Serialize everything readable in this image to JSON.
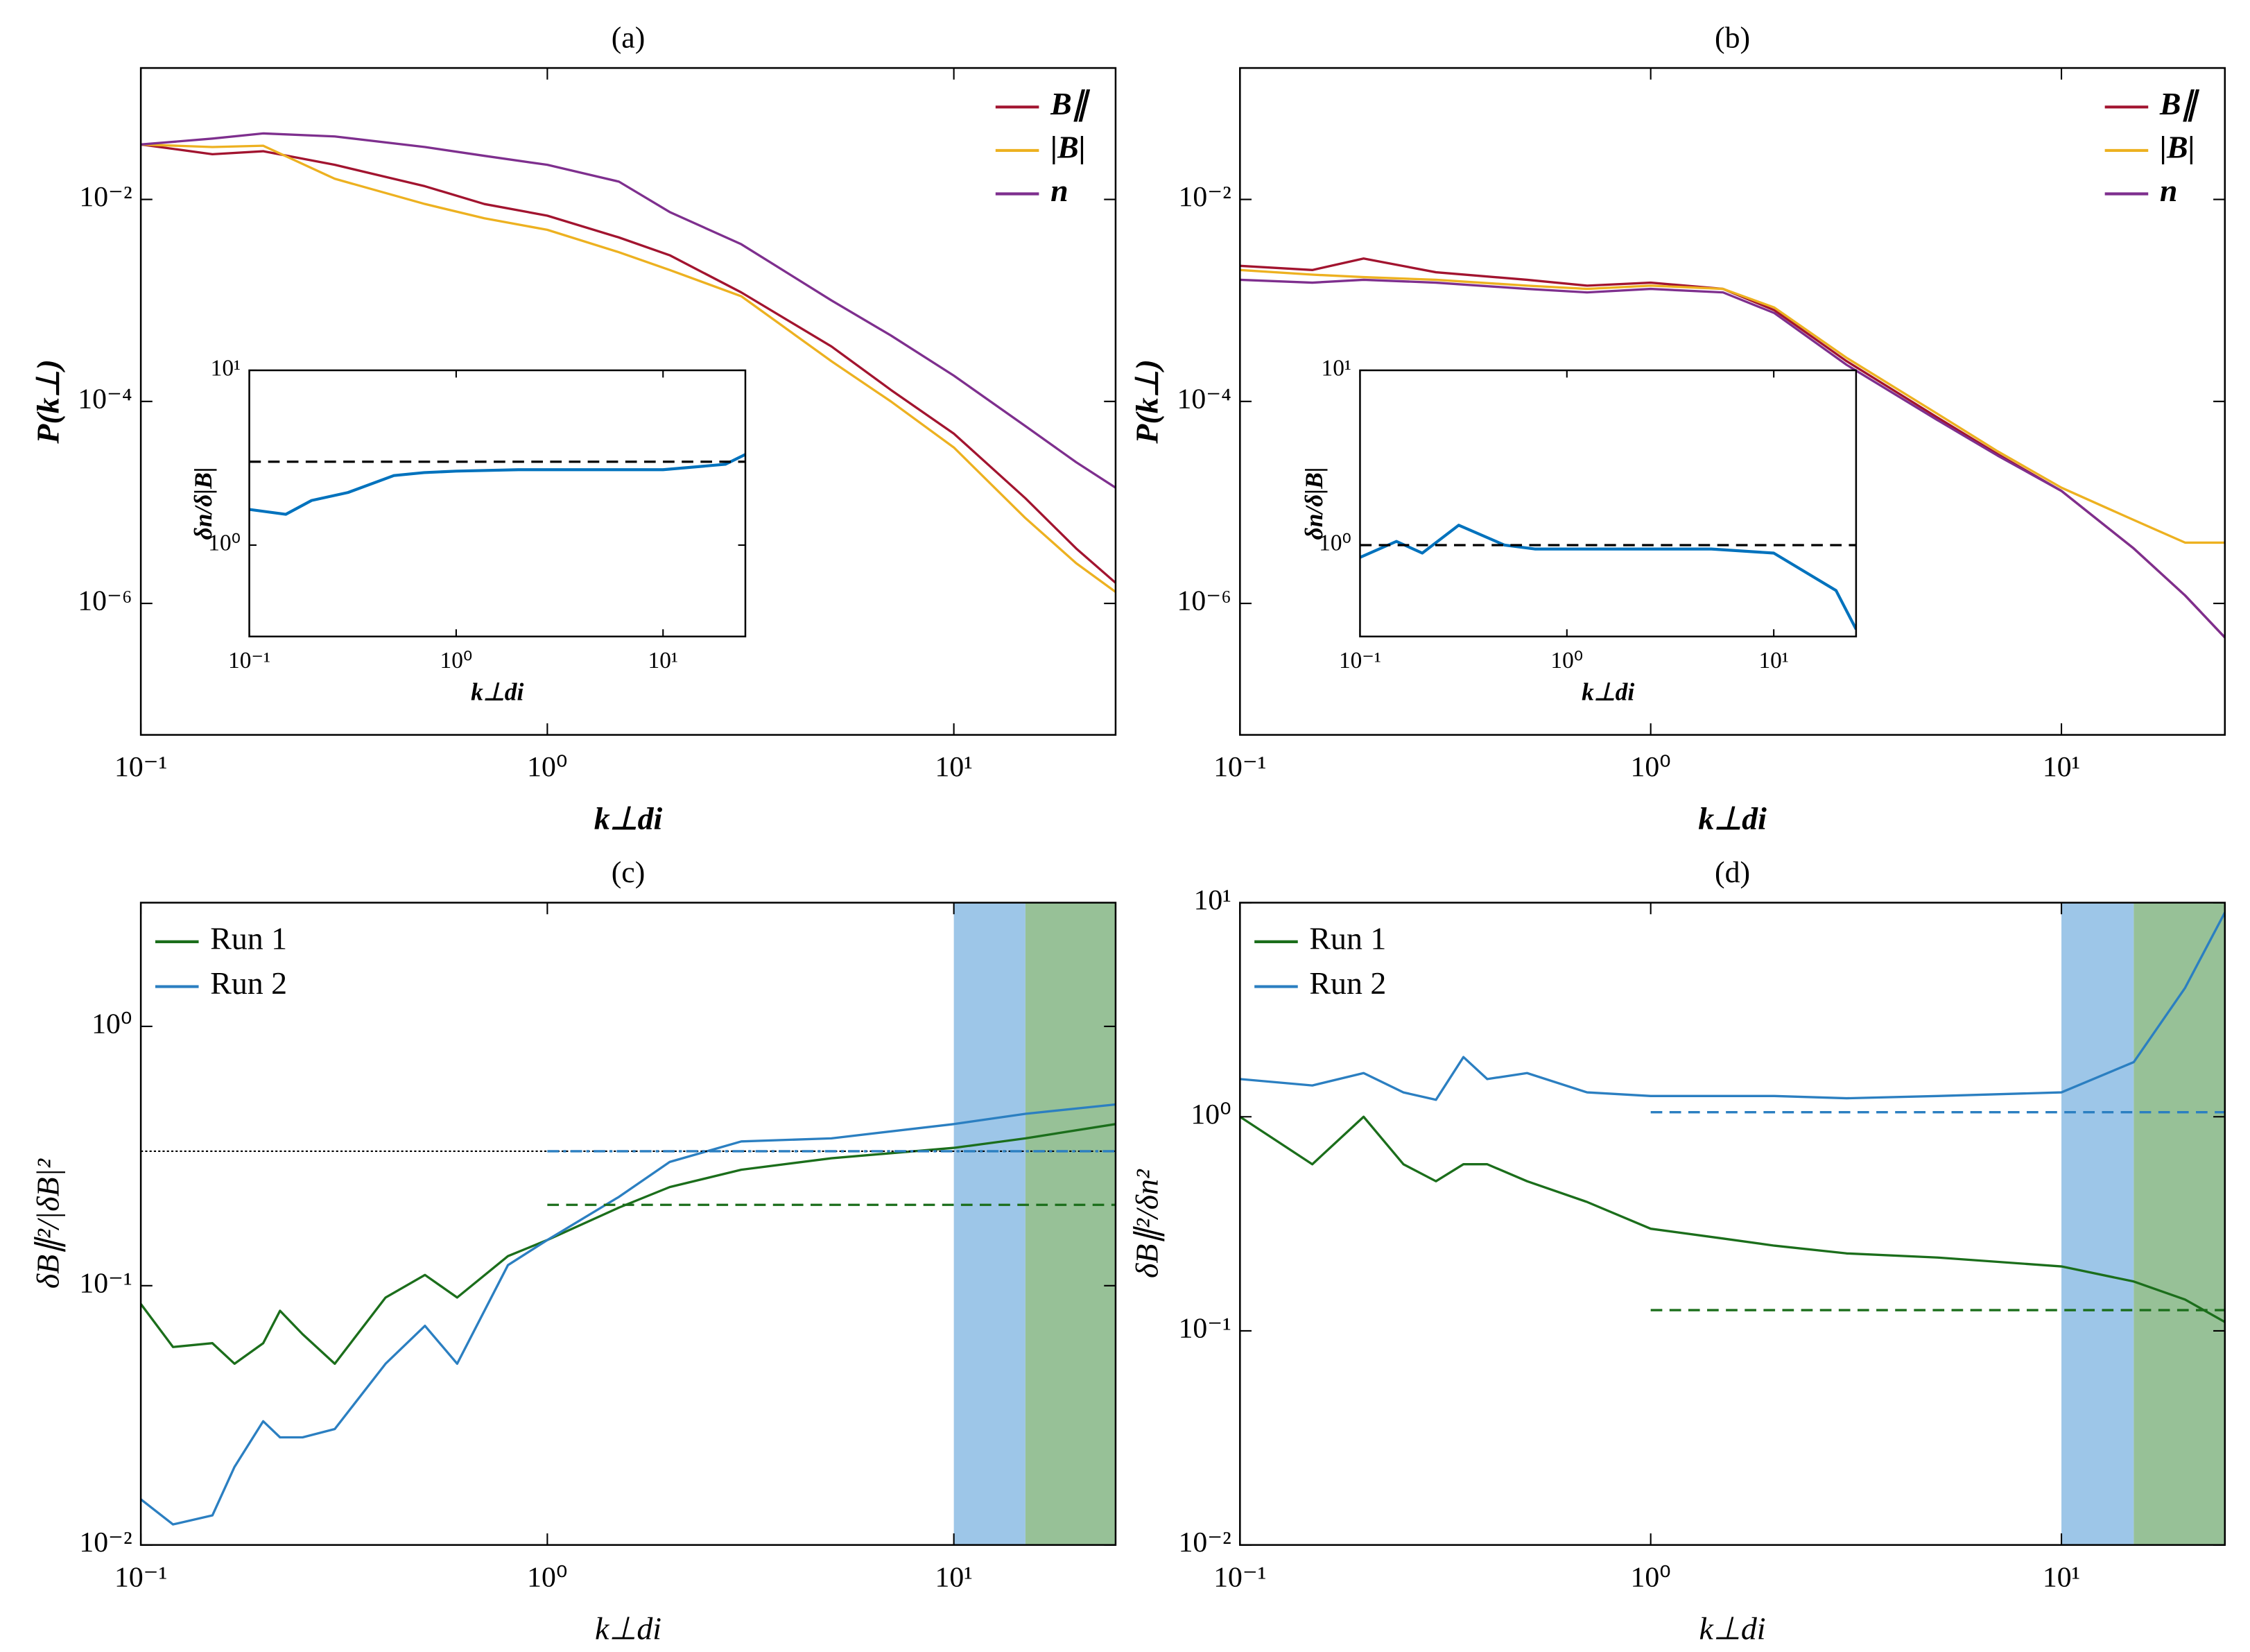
{
  "chart_data": [
    {
      "type": "line",
      "title": "(a)",
      "xlabel": "k⊥di",
      "ylabel": "P(k⊥)",
      "xscale": "log",
      "yscale": "log",
      "xlim": [
        0.1,
        25
      ],
      "ylim": [
        5e-08,
        0.2
      ],
      "xticks": [
        {
          "value": 0.1,
          "label": "10⁻¹"
        },
        {
          "value": 1,
          "label": "10⁰"
        },
        {
          "value": 10,
          "label": "10¹"
        }
      ],
      "yticks": [
        {
          "value": 0.01,
          "label": "10⁻²"
        },
        {
          "value": 0.0001,
          "label": "10⁻⁴"
        },
        {
          "value": 1e-06,
          "label": "10⁻⁶"
        }
      ],
      "legend": "upper right",
      "x": [
        0.1,
        0.15,
        0.2,
        0.3,
        0.5,
        0.7,
        1,
        1.5,
        2,
        3,
        5,
        7,
        10,
        15,
        20,
        25
      ],
      "series": [
        {
          "name": "B∥",
          "color": "#a2142f",
          "values": [
            0.035,
            0.028,
            0.03,
            0.022,
            0.0135,
            0.009,
            0.0069,
            0.0042,
            0.0028,
            0.0012,
            0.00035,
            0.00013,
            4.8e-05,
            1.1e-05,
            3.5e-06,
            1.6e-06
          ]
        },
        {
          "name": "|B|",
          "color": "#edb120",
          "values": [
            0.035,
            0.033,
            0.034,
            0.016,
            0.009,
            0.0065,
            0.005,
            0.003,
            0.002,
            0.0011,
            0.00025,
            0.0001,
            3.5e-05,
            7e-06,
            2.5e-06,
            1.3e-06
          ]
        },
        {
          "name": "n",
          "color": "#7e2f8e",
          "values": [
            0.035,
            0.04,
            0.045,
            0.042,
            0.033,
            0.027,
            0.022,
            0.015,
            0.0075,
            0.0036,
            0.001,
            0.00045,
            0.00018,
            5.7e-05,
            2.5e-05,
            1.4e-05
          ]
        }
      ],
      "inset": {
        "type": "line",
        "xlabel": "k⊥di",
        "ylabel": "δn/δ|B|",
        "xscale": "log",
        "yscale": "log",
        "xlim": [
          0.1,
          25
        ],
        "ylim": [
          0.3,
          10
        ],
        "xticks": [
          {
            "value": 0.1,
            "label": "10⁻¹"
          },
          {
            "value": 1,
            "label": "10⁰"
          },
          {
            "value": 10,
            "label": "10¹"
          }
        ],
        "yticks": [
          {
            "value": 1,
            "label": "10⁰"
          },
          {
            "value": 10,
            "label": "10¹"
          }
        ],
        "x": [
          0.1,
          0.15,
          0.2,
          0.3,
          0.5,
          0.7,
          1,
          2,
          5,
          10,
          20,
          25
        ],
        "series": [
          {
            "color": "#0072bd",
            "values": [
              1.6,
              1.5,
              1.8,
              2.0,
              2.5,
              2.6,
              2.65,
              2.7,
              2.7,
              2.7,
              2.9,
              3.3
            ]
          }
        ],
        "reference_lines": [
          {
            "x": [
              0.1,
              25
            ],
            "y": 3,
            "color": "#000000",
            "style": "dashed"
          }
        ]
      }
    },
    {
      "type": "line",
      "title": "(b)",
      "xlabel": "k⊥di",
      "ylabel": "P(k⊥)",
      "xscale": "log",
      "yscale": "log",
      "xlim": [
        0.1,
        25
      ],
      "ylim": [
        5e-08,
        0.2
      ],
      "xticks": [
        {
          "value": 0.1,
          "label": "10⁻¹"
        },
        {
          "value": 1,
          "label": "10⁰"
        },
        {
          "value": 10,
          "label": "10¹"
        }
      ],
      "yticks": [
        {
          "value": 0.01,
          "label": "10⁻²"
        },
        {
          "value": 0.0001,
          "label": "10⁻⁴"
        },
        {
          "value": 1e-06,
          "label": "10⁻⁶"
        }
      ],
      "legend": "upper right",
      "x": [
        0.1,
        0.15,
        0.2,
        0.3,
        0.5,
        0.7,
        1,
        1.5,
        2,
        3,
        5,
        7,
        10,
        15,
        20,
        25
      ],
      "series": [
        {
          "name": "B∥",
          "color": "#a2142f",
          "values": [
            0.0022,
            0.002,
            0.0026,
            0.0019,
            0.0016,
            0.0014,
            0.0015,
            0.0013,
            0.0008,
            0.00025,
            6.9e-05,
            3e-05,
            1.3e-05,
            3.5e-06,
            1.2e-06,
            4.6e-07
          ]
        },
        {
          "name": "|B|",
          "color": "#edb120",
          "values": [
            0.002,
            0.0018,
            0.0017,
            0.0016,
            0.0014,
            0.0013,
            0.0014,
            0.0013,
            0.00085,
            0.00027,
            7.5e-05,
            3.2e-05,
            1.4e-05,
            6.7e-06,
            4e-06,
            4e-06
          ]
        },
        {
          "name": "n",
          "color": "#7e2f8e",
          "values": [
            0.0016,
            0.0015,
            0.0016,
            0.0015,
            0.0013,
            0.0012,
            0.0013,
            0.0012,
            0.00075,
            0.00023,
            6.5e-05,
            2.9e-05,
            1.3e-05,
            3.5e-06,
            1.2e-06,
            4.6e-07
          ]
        }
      ],
      "inset": {
        "type": "line",
        "xlabel": "k⊥di",
        "ylabel": "δn/δ|B|",
        "xscale": "log",
        "yscale": "log",
        "xlim": [
          0.1,
          25
        ],
        "ylim": [
          0.3,
          10
        ],
        "xticks": [
          {
            "value": 0.1,
            "label": "10⁻¹"
          },
          {
            "value": 1,
            "label": "10⁰"
          },
          {
            "value": 10,
            "label": "10¹"
          }
        ],
        "yticks": [
          {
            "value": 1,
            "label": "10⁰"
          },
          {
            "value": 10,
            "label": "10¹"
          }
        ],
        "x": [
          0.1,
          0.15,
          0.2,
          0.3,
          0.5,
          0.7,
          1,
          2,
          5,
          10,
          20,
          25
        ],
        "series": [
          {
            "color": "#0072bd",
            "values": [
              0.85,
              1.05,
              0.9,
              1.3,
              1.0,
              0.95,
              0.95,
              0.95,
              0.95,
              0.9,
              0.55,
              0.33
            ]
          }
        ],
        "reference_lines": [
          {
            "x": [
              0.1,
              25
            ],
            "y": 1,
            "color": "#000000",
            "style": "dashed"
          }
        ]
      }
    },
    {
      "type": "line",
      "title": "(c)",
      "xlabel": "k⊥di",
      "ylabel": "δB∥²/|δB|²",
      "xscale": "log",
      "yscale": "log",
      "xlim": [
        0.1,
        25
      ],
      "ylim": [
        0.01,
        3
      ],
      "xticks": [
        {
          "value": 0.1,
          "label": "10⁻¹"
        },
        {
          "value": 1,
          "label": "10⁰"
        },
        {
          "value": 10,
          "label": "10¹"
        }
      ],
      "yticks": [
        {
          "value": 0.01,
          "label": "10⁻²"
        },
        {
          "value": 0.1,
          "label": "10⁻¹"
        },
        {
          "value": 1,
          "label": "10⁰"
        }
      ],
      "legend": "upper left",
      "spans": [
        {
          "x": [
            10,
            15
          ],
          "color": "#9dc6e8"
        },
        {
          "x": [
            15,
            25
          ],
          "color": "#97c197"
        }
      ],
      "x": [
        0.1,
        0.12,
        0.15,
        0.17,
        0.2,
        0.22,
        0.25,
        0.3,
        0.4,
        0.5,
        0.6,
        0.8,
        1,
        1.5,
        2,
        3,
        5,
        10,
        15,
        25
      ],
      "series": [
        {
          "name": "Run 1",
          "color": "#1b6e1b",
          "values": [
            0.085,
            0.058,
            0.06,
            0.05,
            0.06,
            0.08,
            0.065,
            0.05,
            0.09,
            0.11,
            0.09,
            0.13,
            0.15,
            0.2,
            0.24,
            0.28,
            0.31,
            0.34,
            0.37,
            0.42
          ]
        },
        {
          "name": "Run 2",
          "color": "#2b7fc1",
          "values": [
            0.015,
            0.012,
            0.013,
            0.02,
            0.03,
            0.026,
            0.026,
            0.028,
            0.05,
            0.07,
            0.05,
            0.12,
            0.15,
            0.22,
            0.3,
            0.36,
            0.37,
            0.42,
            0.46,
            0.5
          ]
        }
      ],
      "reference_lines": [
        {
          "x": [
            0.1,
            25
          ],
          "y": 0.33,
          "color": "#000000",
          "style": "dotted"
        },
        {
          "x": [
            1,
            25
          ],
          "y": 0.33,
          "color": "#2b7fc1",
          "style": "dashdot"
        },
        {
          "x": [
            1,
            25
          ],
          "y": 0.205,
          "color": "#1b6e1b",
          "style": "dashed"
        }
      ]
    },
    {
      "type": "line",
      "title": "(d)",
      "xlabel": "k⊥di",
      "ylabel": "δB∥²/δn²",
      "xscale": "log",
      "yscale": "log",
      "xlim": [
        0.1,
        25
      ],
      "ylim": [
        0.01,
        10
      ],
      "xticks": [
        {
          "value": 0.1,
          "label": "10⁻¹"
        },
        {
          "value": 1,
          "label": "10⁰"
        },
        {
          "value": 10,
          "label": "10¹"
        }
      ],
      "yticks": [
        {
          "value": 0.01,
          "label": "10⁻²"
        },
        {
          "value": 0.1,
          "label": "10⁻¹"
        },
        {
          "value": 1,
          "label": "10⁰"
        },
        {
          "value": 10,
          "label": "10¹"
        }
      ],
      "legend": "upper left",
      "spans": [
        {
          "x": [
            10,
            15
          ],
          "color": "#9dc6e8"
        },
        {
          "x": [
            15,
            25
          ],
          "color": "#97c197"
        }
      ],
      "x": [
        0.1,
        0.15,
        0.2,
        0.25,
        0.3,
        0.35,
        0.4,
        0.5,
        0.7,
        1,
        1.5,
        2,
        3,
        5,
        10,
        15,
        20,
        25
      ],
      "series": [
        {
          "name": "Run 1",
          "color": "#1b6e1b",
          "values": [
            1.0,
            0.6,
            1.0,
            0.6,
            0.5,
            0.6,
            0.6,
            0.5,
            0.4,
            0.3,
            0.27,
            0.25,
            0.23,
            0.22,
            0.2,
            0.17,
            0.14,
            0.11
          ]
        },
        {
          "name": "Run 2",
          "color": "#2b7fc1",
          "values": [
            1.5,
            1.4,
            1.6,
            1.3,
            1.2,
            1.9,
            1.5,
            1.6,
            1.3,
            1.25,
            1.25,
            1.25,
            1.22,
            1.25,
            1.3,
            1.8,
            4,
            9
          ]
        }
      ],
      "reference_lines": [
        {
          "x": [
            1,
            25
          ],
          "y": 1.05,
          "color": "#2b7fc1",
          "style": "dashed"
        },
        {
          "x": [
            1,
            25
          ],
          "y": 0.125,
          "color": "#1b6e1b",
          "style": "dashed"
        }
      ]
    }
  ]
}
